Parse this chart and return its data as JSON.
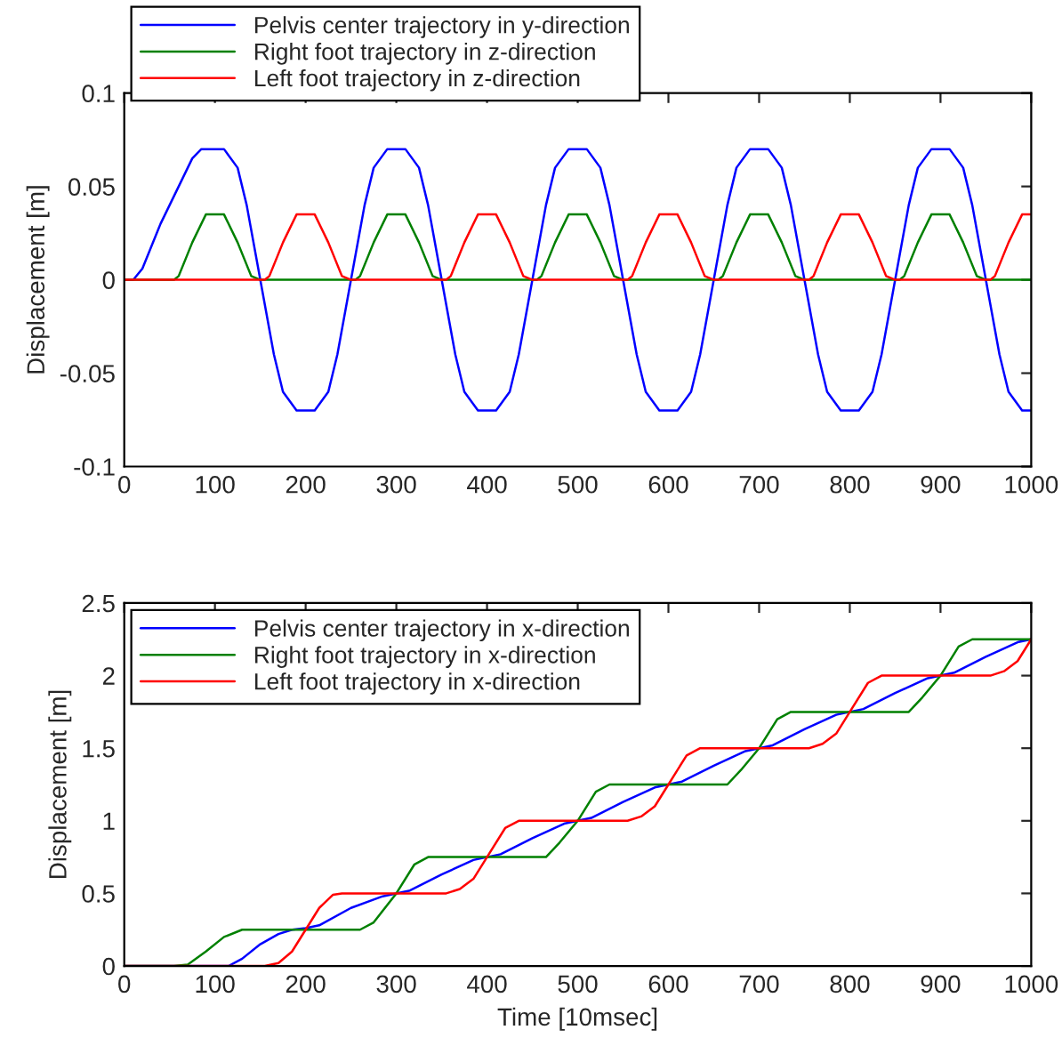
{
  "chart_data": [
    {
      "type": "line",
      "ylabel": "Displacement [m]",
      "xlim": [
        0,
        1000
      ],
      "ylim": [
        -0.1,
        0.1
      ],
      "xticks": [
        0,
        100,
        200,
        300,
        400,
        500,
        600,
        700,
        800,
        900,
        1000
      ],
      "yticks": [
        -0.1,
        -0.05,
        0,
        0.05,
        0.1
      ],
      "legend": "top left",
      "grid": false,
      "series": [
        {
          "name": "Pelvis center trajectory in y-direction",
          "color": "#0000ff",
          "x": [
            0,
            10,
            20,
            40,
            60,
            75,
            85,
            110,
            125,
            135,
            150,
            165,
            175,
            190,
            210,
            225,
            235,
            250,
            265,
            275,
            290,
            310,
            325,
            335,
            350,
            365,
            375,
            390,
            410,
            425,
            435,
            450,
            465,
            475,
            490,
            510,
            525,
            535,
            550,
            565,
            575,
            590,
            610,
            625,
            635,
            650,
            665,
            675,
            690,
            710,
            725,
            735,
            750,
            765,
            775,
            790,
            810,
            825,
            835,
            850,
            865,
            875,
            890,
            910,
            925,
            935,
            950,
            965,
            975,
            990,
            1000
          ],
          "values": [
            0,
            0,
            0.006,
            0.03,
            0.05,
            0.065,
            0.07,
            0.07,
            0.06,
            0.04,
            0,
            -0.04,
            -0.06,
            -0.07,
            -0.07,
            -0.06,
            -0.04,
            0,
            0.04,
            0.06,
            0.07,
            0.07,
            0.06,
            0.04,
            0,
            -0.04,
            -0.06,
            -0.07,
            -0.07,
            -0.06,
            -0.04,
            0,
            0.04,
            0.06,
            0.07,
            0.07,
            0.06,
            0.04,
            0,
            -0.04,
            -0.06,
            -0.07,
            -0.07,
            -0.06,
            -0.04,
            0,
            0.04,
            0.06,
            0.07,
            0.07,
            0.06,
            0.04,
            0,
            -0.04,
            -0.06,
            -0.07,
            -0.07,
            -0.06,
            -0.04,
            0,
            0.04,
            0.06,
            0.07,
            0.07,
            0.06,
            0.04,
            0,
            -0.04,
            -0.06,
            -0.07,
            -0.07
          ]
        },
        {
          "name": "Right foot trajectory in z-direction",
          "color": "#008000",
          "x": [
            0,
            55,
            60,
            75,
            90,
            110,
            125,
            140,
            150,
            255,
            260,
            275,
            290,
            310,
            325,
            340,
            350,
            455,
            460,
            475,
            490,
            510,
            525,
            540,
            550,
            655,
            660,
            675,
            690,
            710,
            725,
            740,
            750,
            855,
            860,
            875,
            890,
            910,
            925,
            940,
            950,
            1000
          ],
          "values": [
            0,
            0,
            0.002,
            0.02,
            0.035,
            0.035,
            0.02,
            0.002,
            0,
            0,
            0.002,
            0.02,
            0.035,
            0.035,
            0.02,
            0.002,
            0,
            0,
            0.002,
            0.02,
            0.035,
            0.035,
            0.02,
            0.002,
            0,
            0,
            0.002,
            0.02,
            0.035,
            0.035,
            0.02,
            0.002,
            0,
            0,
            0.002,
            0.02,
            0.035,
            0.035,
            0.02,
            0.002,
            0,
            0
          ]
        },
        {
          "name": "Left foot trajectory in z-direction",
          "color": "#ff0000",
          "x": [
            0,
            155,
            160,
            175,
            190,
            210,
            225,
            240,
            250,
            355,
            360,
            375,
            390,
            410,
            425,
            440,
            450,
            555,
            560,
            575,
            590,
            610,
            625,
            640,
            650,
            755,
            760,
            775,
            790,
            810,
            825,
            840,
            850,
            955,
            960,
            975,
            990,
            1000
          ],
          "values": [
            0,
            0,
            0.002,
            0.02,
            0.035,
            0.035,
            0.02,
            0.002,
            0,
            0,
            0.002,
            0.02,
            0.035,
            0.035,
            0.02,
            0.002,
            0,
            0,
            0.002,
            0.02,
            0.035,
            0.035,
            0.02,
            0.002,
            0,
            0,
            0.002,
            0.02,
            0.035,
            0.035,
            0.02,
            0.002,
            0,
            0,
            0.002,
            0.02,
            0.035,
            0.035
          ]
        }
      ]
    },
    {
      "type": "line",
      "xlabel": "Time [10msec]",
      "ylabel": "Displacement [m]",
      "xlim": [
        0,
        1000
      ],
      "ylim": [
        0,
        2.5
      ],
      "xticks": [
        0,
        100,
        200,
        300,
        400,
        500,
        600,
        700,
        800,
        900,
        1000
      ],
      "yticks": [
        0,
        0.5,
        1,
        1.5,
        2,
        2.5
      ],
      "legend": "top left",
      "grid": false,
      "series": [
        {
          "name": "Pelvis center trajectory in x-direction",
          "color": "#0000ff",
          "x": [
            0,
            115,
            130,
            150,
            170,
            185,
            200,
            215,
            250,
            285,
            300,
            315,
            350,
            385,
            400,
            415,
            450,
            485,
            500,
            515,
            550,
            585,
            600,
            615,
            650,
            685,
            700,
            715,
            750,
            785,
            800,
            815,
            850,
            885,
            900,
            915,
            950,
            985,
            1000
          ],
          "values": [
            0,
            0,
            0.05,
            0.15,
            0.22,
            0.25,
            0.26,
            0.28,
            0.4,
            0.48,
            0.5,
            0.52,
            0.63,
            0.73,
            0.75,
            0.77,
            0.88,
            0.98,
            1.0,
            1.02,
            1.13,
            1.23,
            1.25,
            1.27,
            1.38,
            1.48,
            1.5,
            1.52,
            1.63,
            1.73,
            1.75,
            1.77,
            1.88,
            1.98,
            2.0,
            2.02,
            2.13,
            2.23,
            2.25
          ]
        },
        {
          "name": "Right foot trajectory in x-direction",
          "color": "#008000",
          "x": [
            0,
            55,
            70,
            90,
            110,
            130,
            260,
            275,
            300,
            320,
            335,
            465,
            480,
            500,
            520,
            535,
            665,
            680,
            700,
            720,
            735,
            865,
            880,
            900,
            920,
            935,
            1000
          ],
          "values": [
            0,
            0,
            0.01,
            0.1,
            0.2,
            0.25,
            0.25,
            0.3,
            0.5,
            0.7,
            0.75,
            0.75,
            0.85,
            1.0,
            1.2,
            1.25,
            1.25,
            1.35,
            1.5,
            1.7,
            1.75,
            1.75,
            1.85,
            2.0,
            2.2,
            2.25,
            2.25
          ]
        },
        {
          "name": "Left foot trajectory in x-direction",
          "color": "#ff0000",
          "x": [
            0,
            155,
            170,
            185,
            200,
            215,
            230,
            240,
            355,
            370,
            385,
            400,
            420,
            435,
            555,
            570,
            585,
            600,
            620,
            635,
            755,
            770,
            785,
            800,
            820,
            835,
            955,
            970,
            985,
            1000
          ],
          "values": [
            0,
            0,
            0.02,
            0.1,
            0.25,
            0.4,
            0.49,
            0.5,
            0.5,
            0.53,
            0.6,
            0.75,
            0.95,
            1.0,
            1.0,
            1.03,
            1.1,
            1.25,
            1.45,
            1.5,
            1.5,
            1.53,
            1.6,
            1.75,
            1.95,
            2.0,
            2.0,
            2.03,
            2.1,
            2.25
          ]
        }
      ]
    }
  ]
}
